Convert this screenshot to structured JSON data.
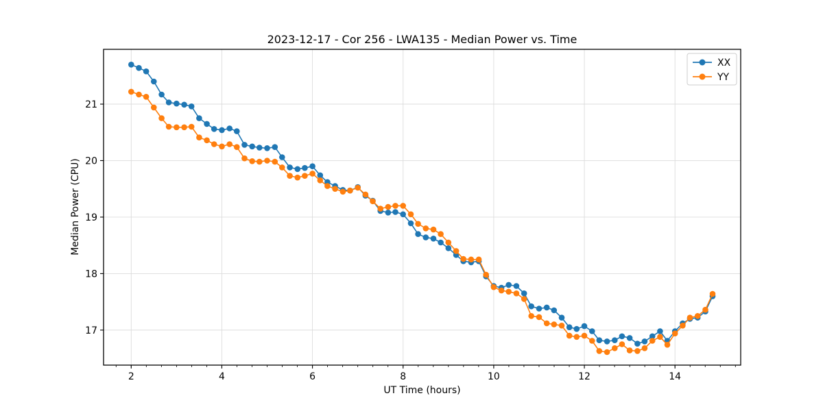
{
  "colors": {
    "series_xx": "#1f77b4",
    "series_yy": "#ff7f0e",
    "grid": "#dcdcdc",
    "spine": "#000000",
    "legend_border": "#cccccc",
    "background": "#ffffff"
  },
  "legend": {
    "items": [
      "XX",
      "YY"
    ],
    "position": "upper right"
  },
  "chart_data": {
    "type": "line",
    "title": "2023-12-17 - Cor 256 - LWA135 - Median Power vs. Time",
    "xlabel": "UT Time (hours)",
    "ylabel": "Median Power (CPU)",
    "xlim": [
      1.39,
      15.45
    ],
    "ylim": [
      16.38,
      21.97
    ],
    "xticks": [
      2,
      4,
      6,
      8,
      10,
      12,
      14
    ],
    "yticks": [
      17,
      18,
      19,
      20,
      21
    ],
    "x_minor_step": 0.33333,
    "grid": true,
    "legend_position": "upper right",
    "marker": "o",
    "x": [
      2.0,
      2.17,
      2.33,
      2.5,
      2.67,
      2.83,
      3.0,
      3.17,
      3.33,
      3.5,
      3.67,
      3.83,
      4.0,
      4.17,
      4.33,
      4.5,
      4.67,
      4.83,
      5.0,
      5.17,
      5.33,
      5.5,
      5.67,
      5.83,
      6.0,
      6.17,
      6.33,
      6.5,
      6.67,
      6.83,
      7.0,
      7.17,
      7.33,
      7.5,
      7.67,
      7.83,
      8.0,
      8.17,
      8.33,
      8.5,
      8.67,
      8.83,
      9.0,
      9.17,
      9.33,
      9.5,
      9.67,
      9.83,
      10.0,
      10.17,
      10.33,
      10.5,
      10.67,
      10.83,
      11.0,
      11.17,
      11.33,
      11.5,
      11.67,
      11.83,
      12.0,
      12.17,
      12.33,
      12.5,
      12.67,
      12.83,
      13.0,
      13.17,
      13.33,
      13.5,
      13.67,
      13.83,
      14.0,
      14.17,
      14.33,
      14.5,
      14.67,
      14.83
    ],
    "series": [
      {
        "name": "XX",
        "color": "#1f77b4",
        "values": [
          21.7,
          21.64,
          21.58,
          21.4,
          21.17,
          21.03,
          21.01,
          20.99,
          20.96,
          20.75,
          20.65,
          20.56,
          20.54,
          20.57,
          20.52,
          20.28,
          20.25,
          20.23,
          20.22,
          20.24,
          20.06,
          19.88,
          19.85,
          19.87,
          19.9,
          19.74,
          19.62,
          19.55,
          19.48,
          19.47,
          19.53,
          19.38,
          19.29,
          19.11,
          19.08,
          19.09,
          19.05,
          18.89,
          18.7,
          18.64,
          18.62,
          18.55,
          18.45,
          18.33,
          18.22,
          18.2,
          18.22,
          17.95,
          17.78,
          17.75,
          17.8,
          17.78,
          17.65,
          17.42,
          17.38,
          17.4,
          17.35,
          17.22,
          17.05,
          17.02,
          17.07,
          16.98,
          16.82,
          16.8,
          16.82,
          16.89,
          16.86,
          16.76,
          16.8,
          16.89,
          16.98,
          16.81,
          16.98,
          17.12,
          17.2,
          17.22,
          17.33,
          17.6
        ]
      },
      {
        "name": "YY",
        "color": "#ff7f0e",
        "values": [
          21.22,
          21.17,
          21.13,
          20.94,
          20.75,
          20.6,
          20.59,
          20.59,
          20.6,
          20.41,
          20.36,
          20.29,
          20.25,
          20.29,
          20.24,
          20.04,
          19.99,
          19.98,
          20.0,
          19.98,
          19.88,
          19.73,
          19.7,
          19.73,
          19.77,
          19.65,
          19.55,
          19.5,
          19.45,
          19.47,
          19.52,
          19.4,
          19.28,
          19.15,
          19.18,
          19.2,
          19.2,
          19.05,
          18.88,
          18.8,
          18.78,
          18.7,
          18.55,
          18.4,
          18.26,
          18.25,
          18.25,
          17.98,
          17.76,
          17.7,
          17.68,
          17.65,
          17.55,
          17.25,
          17.23,
          17.12,
          17.1,
          17.08,
          16.9,
          16.88,
          16.9,
          16.81,
          16.63,
          16.61,
          16.68,
          16.75,
          16.64,
          16.63,
          16.68,
          16.81,
          16.88,
          16.74,
          16.94,
          17.08,
          17.22,
          17.25,
          17.36,
          17.64
        ]
      }
    ]
  }
}
